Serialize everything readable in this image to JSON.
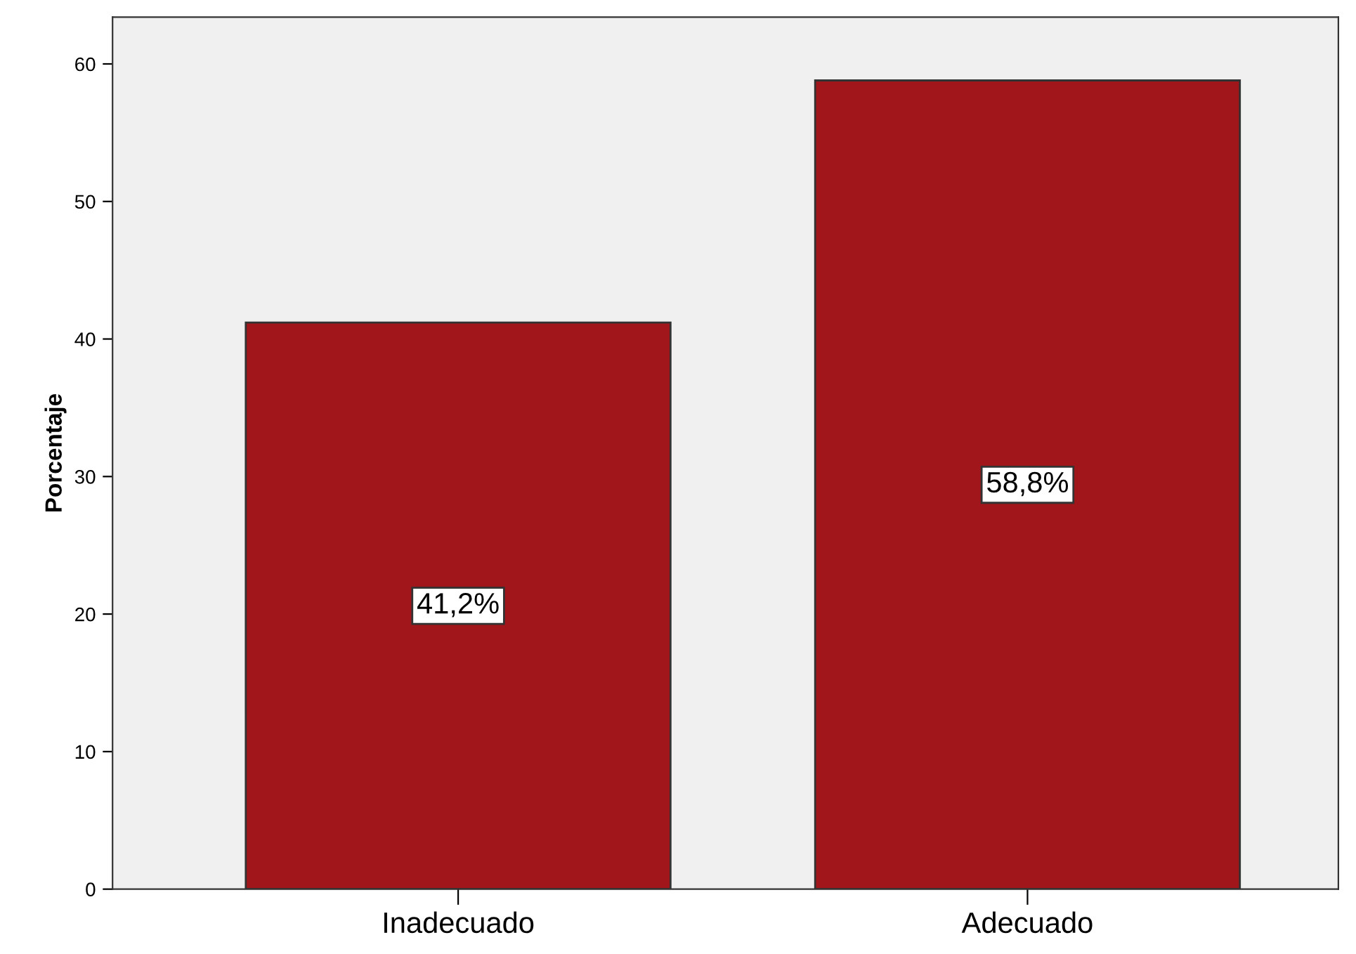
{
  "chart_data": {
    "type": "bar",
    "ylabel": "Porcentaje",
    "categories": [
      "Inadecuado",
      "Adecuado"
    ],
    "values": [
      41.2,
      58.8
    ],
    "value_labels": [
      "41,2%",
      "58,8%"
    ],
    "color": "#a0161a",
    "ylim": [
      0,
      63.4
    ],
    "yticks": [
      0,
      10,
      20,
      30,
      40,
      50,
      60
    ],
    "grid": false
  }
}
